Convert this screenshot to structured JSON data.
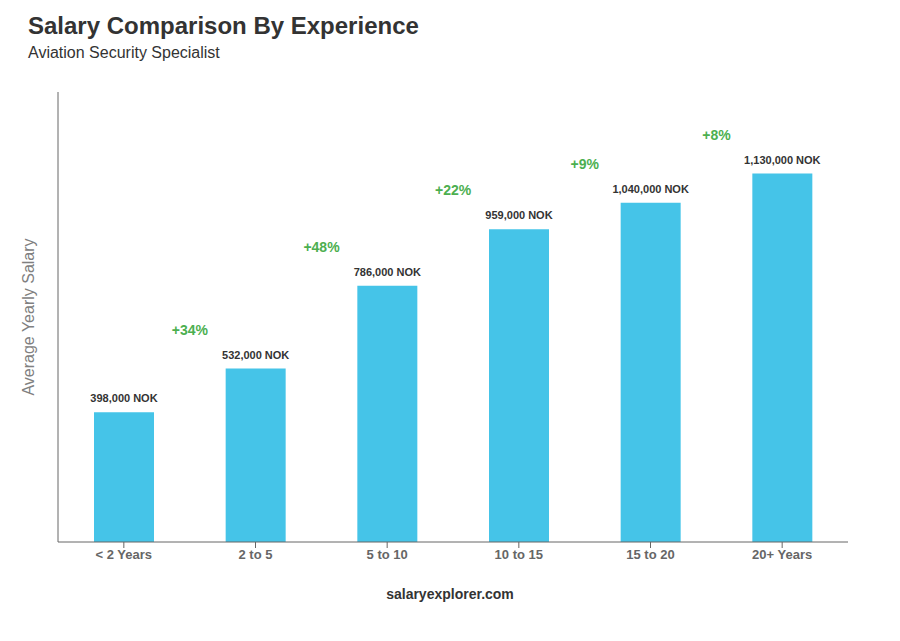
{
  "chart_data": {
    "type": "bar",
    "title": "Salary Comparison By Experience",
    "subtitle": "Aviation Security Specialist",
    "categories": [
      "< 2 Years",
      "2 to 5",
      "5 to 10",
      "10 to 15",
      "15 to 20",
      "20+ Years"
    ],
    "values": [
      398000,
      532000,
      786000,
      959000,
      1040000,
      1130000
    ],
    "value_labels": [
      "398,000 NOK",
      "532,000 NOK",
      "786,000 NOK",
      "959,000 NOK",
      "1,040,000 NOK",
      "1,130,000 NOK"
    ],
    "data_labels": true,
    "color": "#45C4E8",
    "ylabel": "Average Yearly Salary",
    "ylim": [
      0,
      1380000
    ],
    "tick_labels": "x",
    "grid": false,
    "annotations": [
      {
        "text": "+34%",
        "from": "< 2 Years",
        "to": "2 to 5"
      },
      {
        "text": "+48%",
        "from": "2 to 5",
        "to": "5 to 10"
      },
      {
        "text": "+22%",
        "from": "5 to 10",
        "to": "10 to 15"
      },
      {
        "text": "+9%",
        "from": "10 to 15",
        "to": "15 to 20"
      },
      {
        "text": "+8%",
        "from": "15 to 20",
        "to": "20+ Years"
      },
      {
        "text": "salaryexplorer.com"
      }
    ]
  }
}
